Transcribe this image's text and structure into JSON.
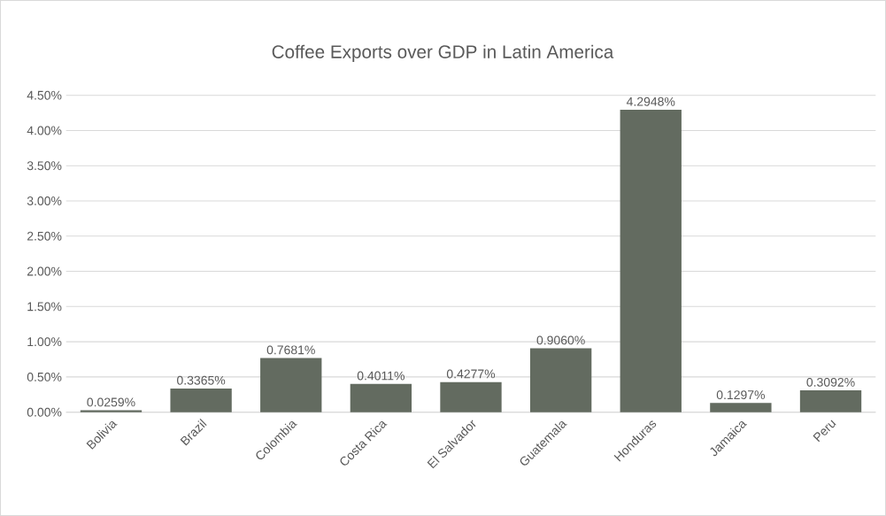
{
  "chart_data": {
    "type": "bar",
    "title": "Coffee Exports over GDP in Latin America",
    "categories": [
      "Bolivia",
      "Brazil",
      "Colombia",
      "Costa Rica",
      "El Salvador",
      "Guatemala",
      "Honduras",
      "Jamaica",
      "Peru"
    ],
    "values": [
      0.0259,
      0.3365,
      0.7681,
      0.4011,
      0.4277,
      0.906,
      4.2948,
      0.1297,
      0.3092
    ],
    "value_labels": [
      "0.0259%",
      "0.3365%",
      "0.7681%",
      "0.4011%",
      "0.4277%",
      "0.9060%",
      "4.2948%",
      "0.1297%",
      "0.3092%"
    ],
    "color": "#636b60",
    "ylim": [
      0,
      4.5
    ],
    "yticks": [
      {
        "value": 0,
        "label": "0.00%"
      },
      {
        "value": 0.5,
        "label": "0.50%"
      },
      {
        "value": 1,
        "label": "1.00%"
      },
      {
        "value": 1.5,
        "label": "1.50%"
      },
      {
        "value": 2,
        "label": "2.00%"
      },
      {
        "value": 2.5,
        "label": "2.50%"
      },
      {
        "value": 3,
        "label": "3.00%"
      },
      {
        "value": 3.5,
        "label": "3.50%"
      },
      {
        "value": 4,
        "label": "4.00%"
      },
      {
        "value": 4.5,
        "label": "4.50%"
      }
    ],
    "grid": "y"
  }
}
